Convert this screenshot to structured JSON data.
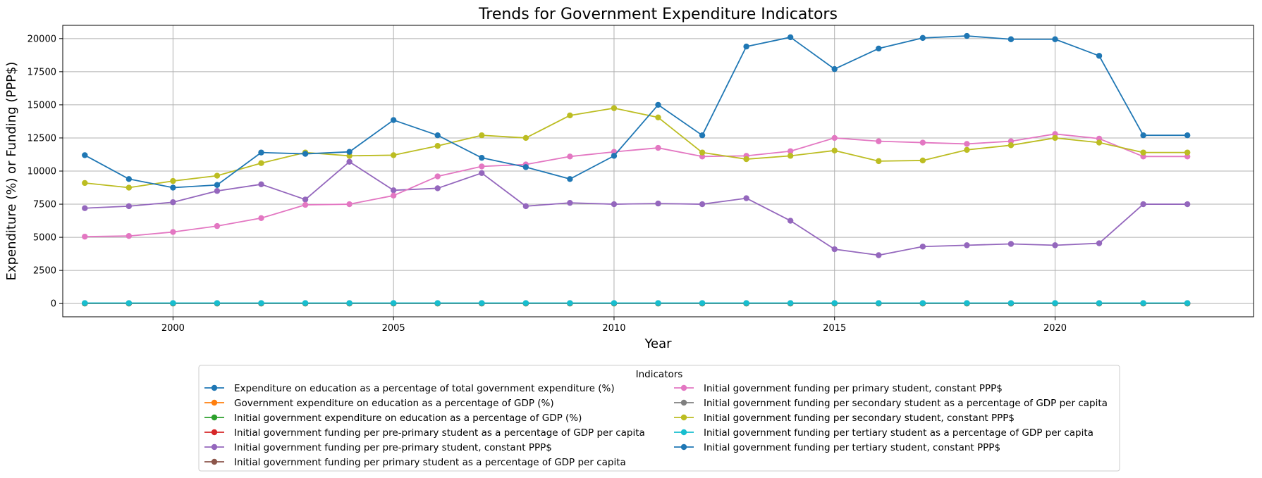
{
  "chart_data": {
    "type": "line",
    "title": "Trends for Government Expenditure Indicators",
    "xlabel": "Year",
    "ylabel": "Expenditure (%) or Funding (PPP$)",
    "xlim": [
      1997.5,
      2024.5
    ],
    "ylim": [
      -1000,
      21000
    ],
    "x_ticks": [
      2000,
      2005,
      2010,
      2015,
      2020
    ],
    "y_ticks": [
      0,
      2500,
      5000,
      7500,
      10000,
      12500,
      15000,
      17500,
      20000
    ],
    "grid": true,
    "legend_title": "Indicators",
    "legend_position": "bottom-center",
    "x": [
      1998,
      1999,
      2000,
      2001,
      2002,
      2003,
      2004,
      2005,
      2006,
      2007,
      2008,
      2009,
      2010,
      2011,
      2012,
      2013,
      2014,
      2015,
      2016,
      2017,
      2018,
      2019,
      2020,
      2021,
      2022,
      2023
    ],
    "series": [
      {
        "name": "Expenditure on education as a percentage of total government expenditure (%)",
        "color": "#1f77b4",
        "values": [
          14,
          14,
          14,
          14,
          14,
          14,
          14,
          14,
          14,
          14,
          14,
          14,
          14,
          14,
          14,
          14,
          14,
          14,
          14,
          14,
          14,
          14,
          14,
          14,
          14,
          14
        ]
      },
      {
        "name": "Government expenditure on education as a percentage of GDP (%)",
        "color": "#ff7f0e",
        "values": [
          4,
          4,
          4,
          4,
          4,
          4,
          4,
          4,
          4,
          4,
          4,
          4,
          4,
          4,
          4,
          4,
          4,
          4,
          4,
          4,
          4,
          4,
          4,
          4,
          4,
          4
        ]
      },
      {
        "name": "Initial government expenditure on education as a percentage of GDP (%)",
        "color": "#2ca02c",
        "values": [
          4,
          4,
          4,
          4,
          4,
          4,
          4,
          4,
          4,
          4,
          4,
          4,
          4,
          4,
          4,
          4,
          4,
          4,
          4,
          4,
          4,
          4,
          4,
          4,
          4,
          4
        ]
      },
      {
        "name": "Initial government funding per pre-primary student as a percentage of GDP per capita",
        "color": "#d62728",
        "values": [
          18,
          18,
          18,
          18,
          18,
          18,
          18,
          18,
          18,
          18,
          18,
          18,
          18,
          18,
          18,
          18,
          18,
          18,
          18,
          18,
          18,
          18,
          18,
          18,
          18,
          18
        ]
      },
      {
        "name": "Initial government funding per pre-primary student, constant PPP$",
        "color": "#9467bd",
        "values": [
          7200,
          7350,
          7650,
          8500,
          9000,
          7850,
          10700,
          8550,
          8700,
          9850,
          7350,
          7600,
          7500,
          7550,
          7500,
          7950,
          6250,
          4100,
          3650,
          4300,
          4400,
          4500,
          4400,
          4550,
          7500,
          7500
        ]
      },
      {
        "name": "Initial government funding per primary student as a percentage of GDP per capita",
        "color": "#8c564b",
        "values": [
          20,
          20,
          20,
          20,
          20,
          20,
          20,
          20,
          20,
          20,
          20,
          20,
          20,
          20,
          20,
          20,
          20,
          20,
          20,
          20,
          20,
          20,
          20,
          20,
          20,
          20
        ]
      },
      {
        "name": "Initial government funding per primary student, constant PPP$",
        "color": "#e377c2",
        "values": [
          5050,
          5100,
          5400,
          5850,
          6450,
          7450,
          7500,
          8150,
          9600,
          10350,
          10500,
          11100,
          11450,
          11750,
          11100,
          11150,
          11500,
          12500,
          12250,
          12150,
          12050,
          12250,
          12800,
          12450,
          11100,
          11100
        ]
      },
      {
        "name": "Initial government funding per secondary student as a percentage of GDP per capita",
        "color": "#7f7f7f",
        "values": [
          25,
          25,
          25,
          25,
          25,
          25,
          25,
          25,
          25,
          25,
          25,
          25,
          25,
          25,
          25,
          25,
          25,
          25,
          25,
          25,
          25,
          25,
          25,
          25,
          25,
          25
        ]
      },
      {
        "name": "Initial government funding per secondary student, constant PPP$",
        "color": "#bcbd22",
        "values": [
          9100,
          8750,
          9250,
          9650,
          10600,
          11400,
          11150,
          11200,
          11900,
          12700,
          12500,
          14200,
          14750,
          14050,
          11400,
          10900,
          11150,
          11550,
          10750,
          10800,
          11600,
          11950,
          12500,
          12150,
          11400,
          11400
        ]
      },
      {
        "name": "Initial government funding per tertiary student as a percentage of GDP per capita",
        "color": "#17becf",
        "values": [
          35,
          35,
          35,
          35,
          35,
          35,
          35,
          35,
          35,
          35,
          35,
          35,
          35,
          35,
          35,
          35,
          35,
          35,
          35,
          35,
          35,
          35,
          35,
          35,
          35,
          35
        ]
      },
      {
        "name": "Initial government funding per tertiary student, constant PPP$",
        "color": "#1f77b4",
        "values": [
          11200,
          9400,
          8750,
          8950,
          11400,
          11300,
          11450,
          13850,
          12700,
          11000,
          10300,
          9400,
          11150,
          15000,
          12700,
          19400,
          20100,
          17700,
          19250,
          20050,
          20200,
          19950,
          19950,
          18700,
          12700,
          12700
        ]
      }
    ]
  }
}
